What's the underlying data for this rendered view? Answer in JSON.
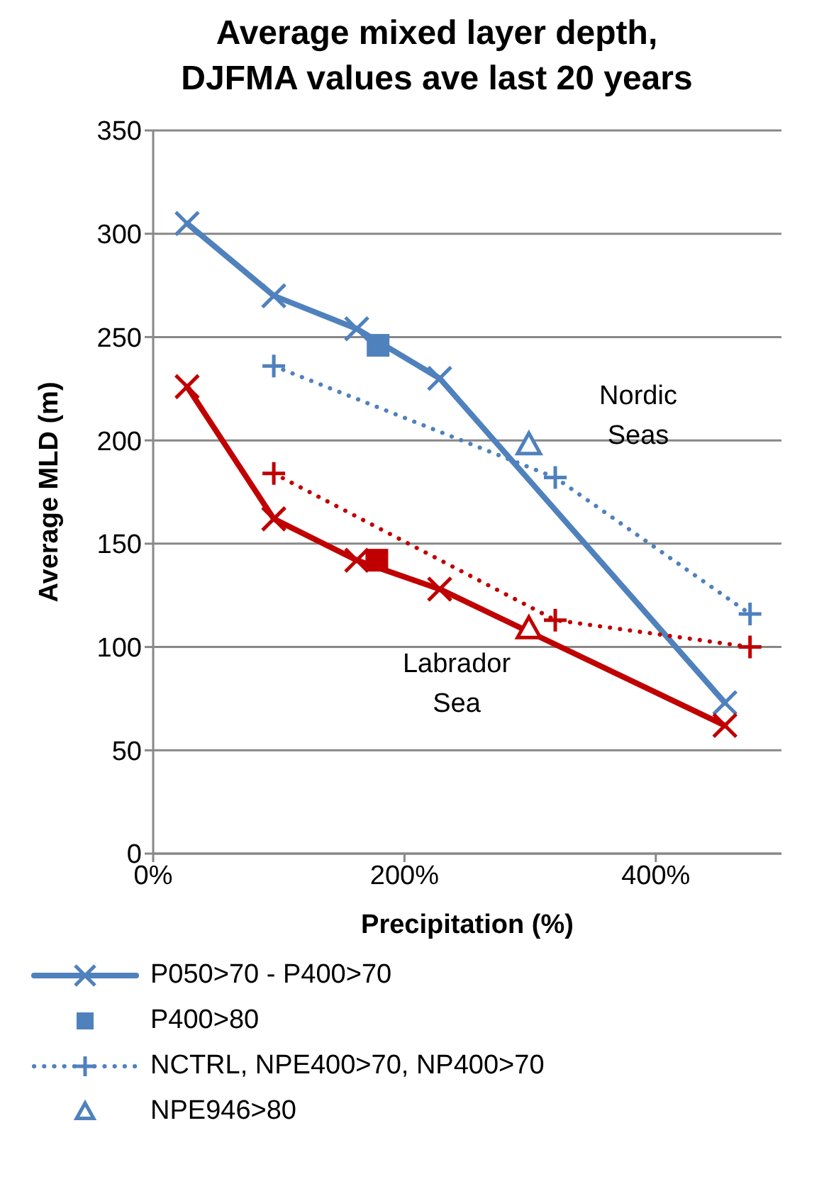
{
  "chart_data": {
    "type": "line",
    "title": "Average mixed layer depth, DJFMA values ave last 20 years",
    "xlabel": "Precipitation (%)",
    "ylabel": "Average MLD (m)",
    "xlim": [
      0,
      500
    ],
    "xticks": [
      {
        "value": 0,
        "label": "0%"
      },
      {
        "value": 200,
        "label": "200%"
      },
      {
        "value": 400,
        "label": "400%"
      }
    ],
    "ylim": [
      0,
      350
    ],
    "yticks": [
      0,
      50,
      100,
      150,
      200,
      250,
      300,
      350
    ],
    "grid": "y",
    "legend": "bottom",
    "series": [
      {
        "name": "P050>70 - P400>70",
        "type": "line",
        "marker": "cross",
        "line_style": "solid",
        "color": "#4f81bd",
        "x": [
          27,
          96,
          162,
          228,
          455
        ],
        "values": [
          305,
          270,
          254,
          230,
          73
        ]
      },
      {
        "name": "P400>80",
        "type": "scatter",
        "marker": "square",
        "color": "#4f81bd",
        "x": [
          179
        ],
        "values": [
          246
        ]
      },
      {
        "name": "NCTRL, NPE400>70, NP400>70",
        "type": "line",
        "marker": "plus",
        "line_style": "dotted",
        "color": "#4f81bd",
        "x": [
          96,
          320,
          475
        ],
        "values": [
          236,
          182,
          116
        ]
      },
      {
        "name": "NPE946>80",
        "type": "scatter",
        "marker": "triangle",
        "color": "#4f81bd",
        "x": [
          299
        ],
        "values": [
          198
        ]
      },
      {
        "type": "line",
        "marker": "cross",
        "line_style": "solid",
        "color": "#c00000",
        "x": [
          27,
          96,
          162,
          228,
          455
        ],
        "values": [
          226,
          162,
          142,
          128,
          62
        ]
      },
      {
        "type": "scatter",
        "marker": "square",
        "color": "#c00000",
        "x": [
          178
        ],
        "values": [
          142
        ]
      },
      {
        "type": "line",
        "marker": "plus",
        "line_style": "dotted",
        "color": "#c00000",
        "x": [
          96,
          320,
          475
        ],
        "values": [
          184,
          113,
          100
        ]
      },
      {
        "type": "scatter",
        "marker": "triangle",
        "color": "#c00000",
        "x": [
          299
        ],
        "values": [
          109
        ]
      }
    ],
    "annotations": [
      "Nordic Seas",
      "Labrador Sea"
    ]
  }
}
